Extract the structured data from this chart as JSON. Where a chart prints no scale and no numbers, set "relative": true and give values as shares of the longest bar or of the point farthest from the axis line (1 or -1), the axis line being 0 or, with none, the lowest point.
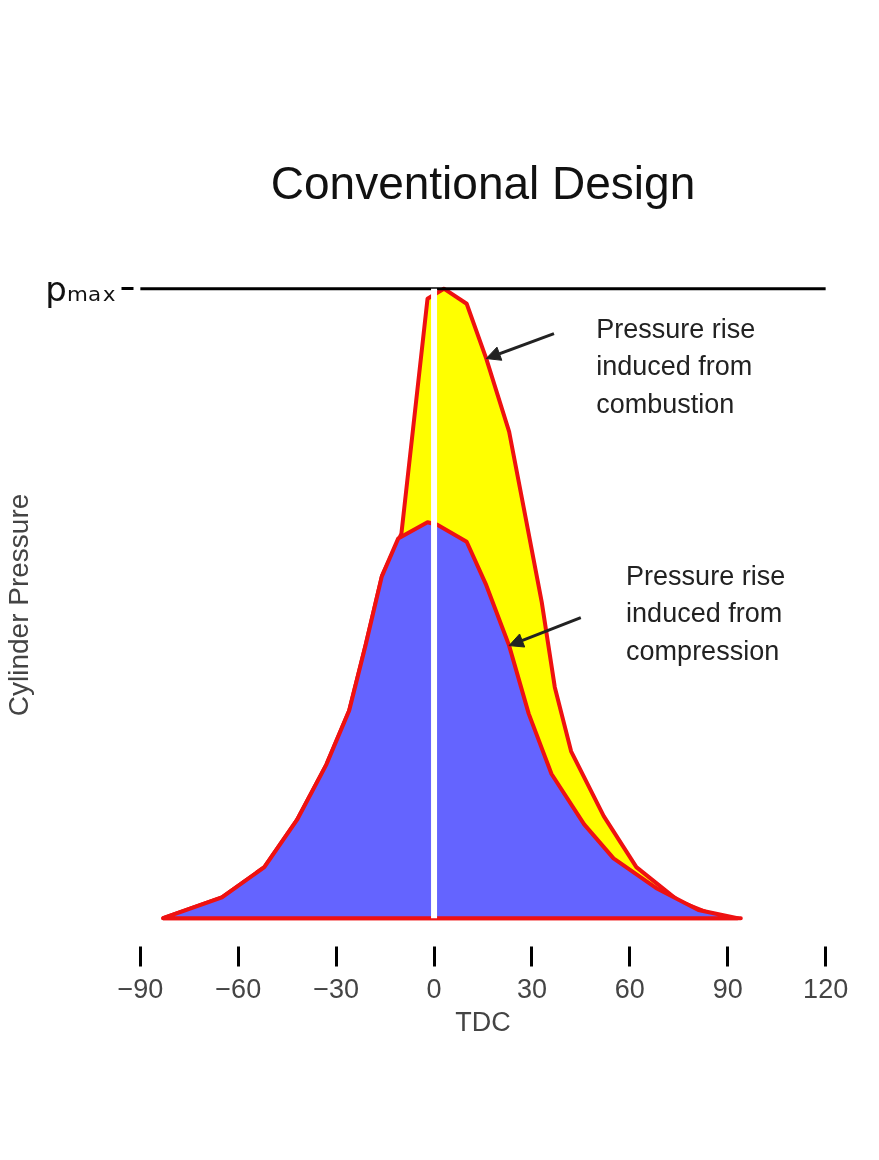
{
  "chart_data": {
    "type": "area",
    "title": "Conventional Design",
    "xlabel": "TDC",
    "ylabel": "Cylinder Pressure",
    "relative": true,
    "xlim": [
      -90,
      120
    ],
    "xticks": [
      -90,
      -60,
      -30,
      0,
      30,
      60,
      90,
      120
    ],
    "grid": false,
    "series": [
      {
        "color": "#ffff00",
        "x": [
          -83,
          -65,
          -52,
          -42,
          -33,
          -26,
          -21,
          -16,
          -10,
          -2,
          3,
          10,
          16,
          23,
          28,
          33,
          37,
          42,
          52,
          62,
          75,
          88,
          94
        ],
        "values": [
          0,
          0.033,
          0.081,
          0.156,
          0.244,
          0.33,
          0.433,
          0.543,
          0.611,
          0.984,
          1.0,
          0.976,
          0.889,
          0.773,
          0.638,
          0.502,
          0.367,
          0.265,
          0.162,
          0.081,
          0.027,
          0,
          0
        ]
      },
      {
        "color": "#6464ff",
        "x": [
          -83,
          -65,
          -52,
          -42,
          -33,
          -26,
          -21,
          -16,
          -11,
          -2,
          1,
          10,
          16,
          23,
          29,
          36,
          46,
          55,
          68,
          81,
          93
        ],
        "values": [
          0,
          0.033,
          0.081,
          0.156,
          0.244,
          0.33,
          0.433,
          0.543,
          0.603,
          0.629,
          0.625,
          0.598,
          0.529,
          0.433,
          0.325,
          0.229,
          0.149,
          0.095,
          0.048,
          0.013,
          0
        ]
      }
    ],
    "ref_lines": [
      {
        "axis": "y",
        "value": 1,
        "label": "pₘₐₓ",
        "color": "#000000"
      },
      {
        "axis": "x",
        "value": 0,
        "color": "#ffffff"
      }
    ],
    "annotations": [
      "Pressure rise induced from combustion",
      "Pressure rise induced from compression"
    ]
  }
}
